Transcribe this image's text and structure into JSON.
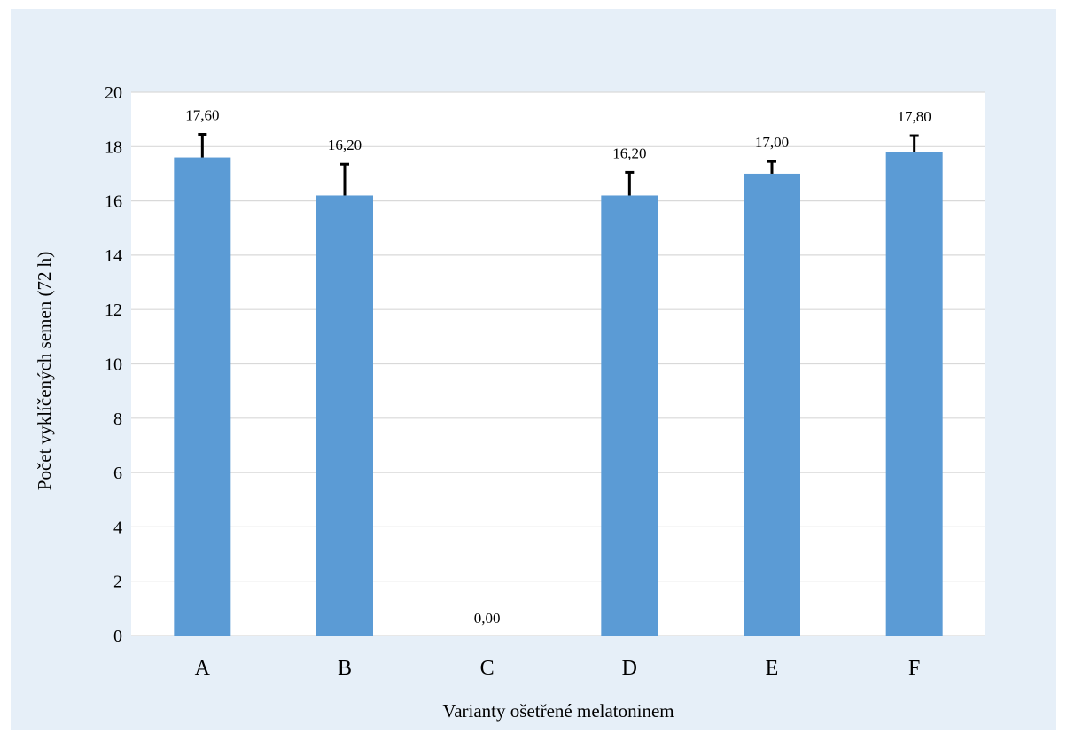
{
  "chart_data": {
    "type": "bar",
    "categories": [
      "A",
      "B",
      "C",
      "D",
      "E",
      "F"
    ],
    "values": [
      17.6,
      16.2,
      0.0,
      16.2,
      17.0,
      17.8
    ],
    "error_plus": [
      0.85,
      1.15,
      0.0,
      0.85,
      0.45,
      0.6
    ],
    "data_labels": [
      "17,60",
      "16,20",
      "0,00",
      "16,20",
      "17,00",
      "17,80"
    ],
    "title": "",
    "xlabel": "Varianty ošetřené melatoninem",
    "ylabel": "Počet vyklíčených semen (72 h)",
    "ylim": [
      0,
      20
    ],
    "yticks": [
      0,
      2,
      4,
      6,
      8,
      10,
      12,
      14,
      16,
      18,
      20
    ],
    "grid": true,
    "legend": "none",
    "colors": {
      "bar": "#5b9bd5",
      "error_bar": "#000000",
      "gridline": "#d9d9d9",
      "outer_background": "#e6eff8",
      "plot_background": "#ffffff"
    }
  }
}
